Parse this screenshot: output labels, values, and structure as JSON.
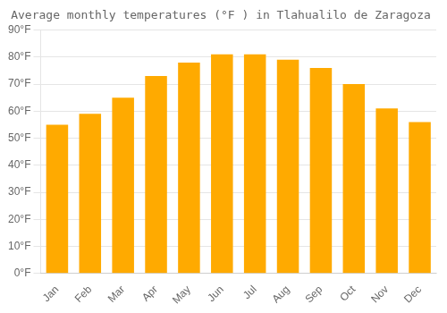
{
  "chart_data": {
    "type": "bar",
    "title": "Average monthly temperatures (°F ) in Tlahualilo de Zaragoza",
    "categories": [
      "Jan",
      "Feb",
      "Mar",
      "Apr",
      "May",
      "Jun",
      "Jul",
      "Aug",
      "Sep",
      "Oct",
      "Nov",
      "Dec"
    ],
    "values": [
      55,
      59,
      65,
      73,
      78,
      81,
      81,
      79,
      76,
      70,
      61,
      56
    ],
    "color": "#FFAA00",
    "ylim": [
      0,
      90
    ],
    "yticks": [
      {
        "value": 0,
        "label": "0°F"
      },
      {
        "value": 10,
        "label": "10°F"
      },
      {
        "value": 20,
        "label": "20°F"
      },
      {
        "value": 30,
        "label": "30°F"
      },
      {
        "value": 40,
        "label": "40°F"
      },
      {
        "value": 50,
        "label": "50°F"
      },
      {
        "value": 60,
        "label": "60°F"
      },
      {
        "value": 70,
        "label": "70°F"
      },
      {
        "value": 80,
        "label": "80°F"
      },
      {
        "value": 90,
        "label": "90°F"
      }
    ],
    "grid": true
  }
}
